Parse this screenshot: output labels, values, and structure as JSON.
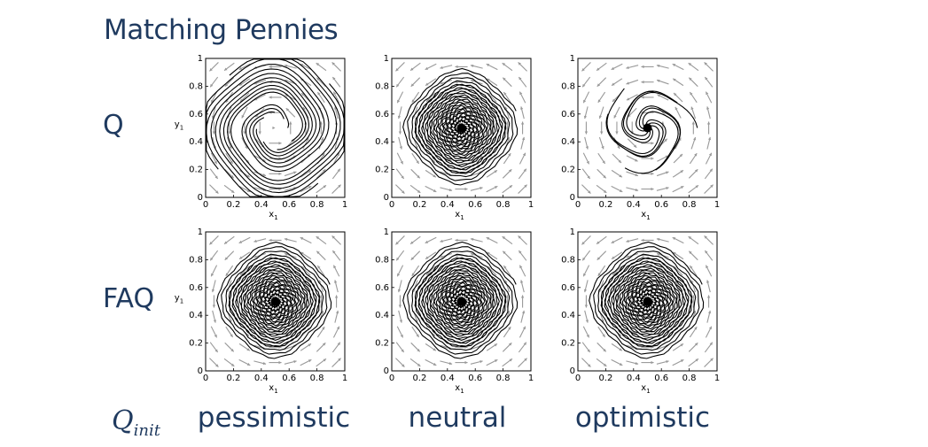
{
  "title": "Matching Pennies",
  "row_labels": {
    "q": "Q",
    "faq": "FAQ"
  },
  "qinit_label": {
    "main": "Q",
    "sub": "init"
  },
  "column_labels": [
    "pessimistic",
    "neutral",
    "optimistic"
  ],
  "chart_data": [
    {
      "type": "vector-field-trajectories",
      "row": "Q",
      "column": "pessimistic",
      "xlabel": "x1",
      "ylabel": "y1",
      "xlim": [
        0,
        1
      ],
      "ylim": [
        0,
        1
      ],
      "xticks": [
        "0",
        "0.2",
        "0.4",
        "0.6",
        "0.8",
        "1"
      ],
      "yticks": [
        "0",
        "0.2",
        "0.4",
        "0.6",
        "0.8",
        "1"
      ],
      "trajectory_behavior": "diverging to boundary",
      "trajectory_color": "#000000",
      "arrow_color": "#999999"
    },
    {
      "type": "vector-field-trajectories",
      "row": "Q",
      "column": "neutral",
      "xlabel": "x1",
      "ylabel": "",
      "xlim": [
        0,
        1
      ],
      "ylim": [
        0,
        1
      ],
      "xticks": [
        "0",
        "0.2",
        "0.4",
        "0.6",
        "0.8",
        "1"
      ],
      "yticks": [
        "0",
        "0.2",
        "0.4",
        "0.6",
        "0.8",
        "1"
      ],
      "trajectory_behavior": "cycling around center",
      "trajectory_color": "#000000",
      "arrow_color": "#999999"
    },
    {
      "type": "vector-field-trajectories",
      "row": "Q",
      "column": "optimistic",
      "xlabel": "x1",
      "ylabel": "",
      "xlim": [
        0,
        1
      ],
      "ylim": [
        0,
        1
      ],
      "xticks": [
        "0",
        "0.2",
        "0.4",
        "0.6",
        "0.8",
        "1"
      ],
      "yticks": [
        "0",
        "0.2",
        "0.4",
        "0.6",
        "0.8",
        "1"
      ],
      "trajectory_behavior": "converging to center",
      "trajectory_color": "#000000",
      "arrow_color": "#999999"
    },
    {
      "type": "vector-field-trajectories",
      "row": "FAQ",
      "column": "pessimistic",
      "xlabel": "x1",
      "ylabel": "y1",
      "xlim": [
        0,
        1
      ],
      "ylim": [
        0,
        1
      ],
      "xticks": [
        "0",
        "0.2",
        "0.4",
        "0.6",
        "0.8",
        "1"
      ],
      "yticks": [
        "0",
        "0.2",
        "0.4",
        "0.6",
        "0.8",
        "1"
      ],
      "trajectory_behavior": "cycling around center",
      "trajectory_color": "#000000",
      "arrow_color": "#999999"
    },
    {
      "type": "vector-field-trajectories",
      "row": "FAQ",
      "column": "neutral",
      "xlabel": "x1",
      "ylabel": "",
      "xlim": [
        0,
        1
      ],
      "ylim": [
        0,
        1
      ],
      "xticks": [
        "0",
        "0.2",
        "0.4",
        "0.6",
        "0.8",
        "1"
      ],
      "yticks": [
        "0",
        "0.2",
        "0.4",
        "0.6",
        "0.8",
        "1"
      ],
      "trajectory_behavior": "cycling around center",
      "trajectory_color": "#000000",
      "arrow_color": "#999999"
    },
    {
      "type": "vector-field-trajectories",
      "row": "FAQ",
      "column": "optimistic",
      "xlabel": "x1",
      "ylabel": "",
      "xlim": [
        0,
        1
      ],
      "ylim": [
        0,
        1
      ],
      "xticks": [
        "0",
        "0.2",
        "0.4",
        "0.6",
        "0.8",
        "1"
      ],
      "yticks": [
        "0",
        "0.2",
        "0.4",
        "0.6",
        "0.8",
        "1"
      ],
      "trajectory_behavior": "cycling around center",
      "trajectory_color": "#000000",
      "arrow_color": "#999999"
    }
  ]
}
